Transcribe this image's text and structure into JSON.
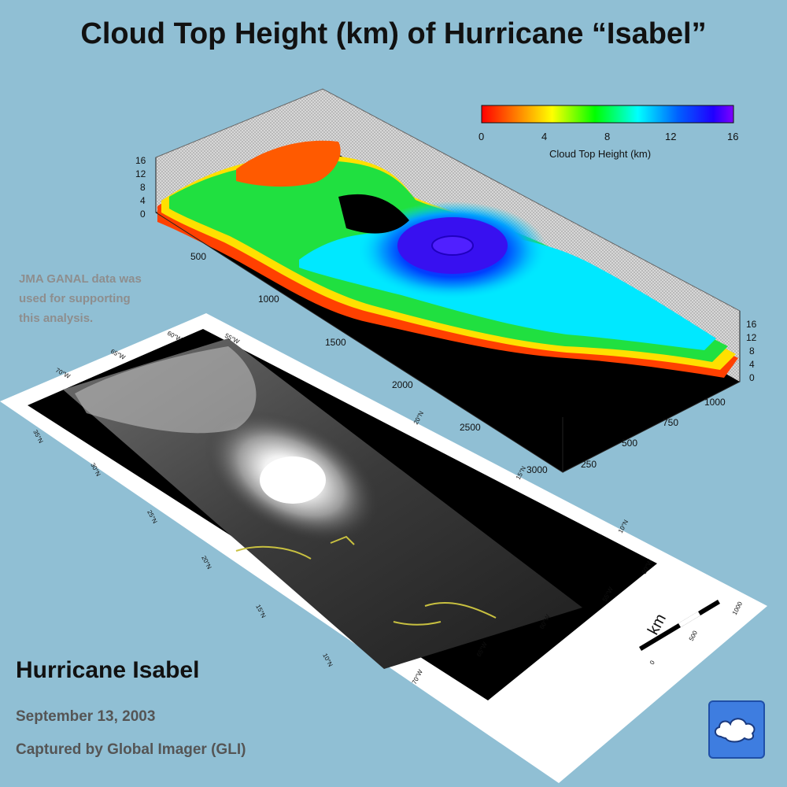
{
  "title": "Cloud Top Height (km) of Hurricane “Isabel”",
  "note": {
    "line1": "JMA  GANAL data was",
    "line2": "used for supporting",
    "line3": "this analysis."
  },
  "caption": {
    "title": "Hurricane Isabel",
    "date": "September 13, 2003",
    "source": "Captured by Global Imager (GLI)"
  },
  "colorbar": {
    "label": "Cloud Top Height (km)",
    "ticks": [
      "0",
      "4",
      "8",
      "12",
      "16"
    ],
    "colors": [
      "#ff0000",
      "#ff8000",
      "#ffff00",
      "#00ff00",
      "#00ffff",
      "#0080ff",
      "#0000ff",
      "#8000ff"
    ]
  },
  "surface": {
    "z_left_ticks": [
      "16",
      "12",
      "8",
      "4",
      "0"
    ],
    "z_right_ticks": [
      "16",
      "12",
      "8",
      "4",
      "0"
    ],
    "x_ticks": [
      "500",
      "1000",
      "1500",
      "2000",
      "2500",
      "3000"
    ],
    "y_ticks": [
      "1000",
      "750",
      "500",
      "250"
    ]
  },
  "map": {
    "lon_labels_bottom": [
      "70°W",
      "65°W",
      "60°W",
      "55°W",
      "50°W"
    ],
    "lat_labels_left": [
      "10°N",
      "15°N",
      "20°N",
      "25°N",
      "30°N",
      "35°N"
    ],
    "right_labels": [
      "10°N",
      "15°N",
      "20°N"
    ],
    "top_labels": [
      "70°W",
      "65°W",
      "60°W",
      "55°W"
    ],
    "scale_unit": "km",
    "scale_ticks": [
      "0",
      "500",
      "1000"
    ]
  },
  "logo_icon": "cloud-icon"
}
